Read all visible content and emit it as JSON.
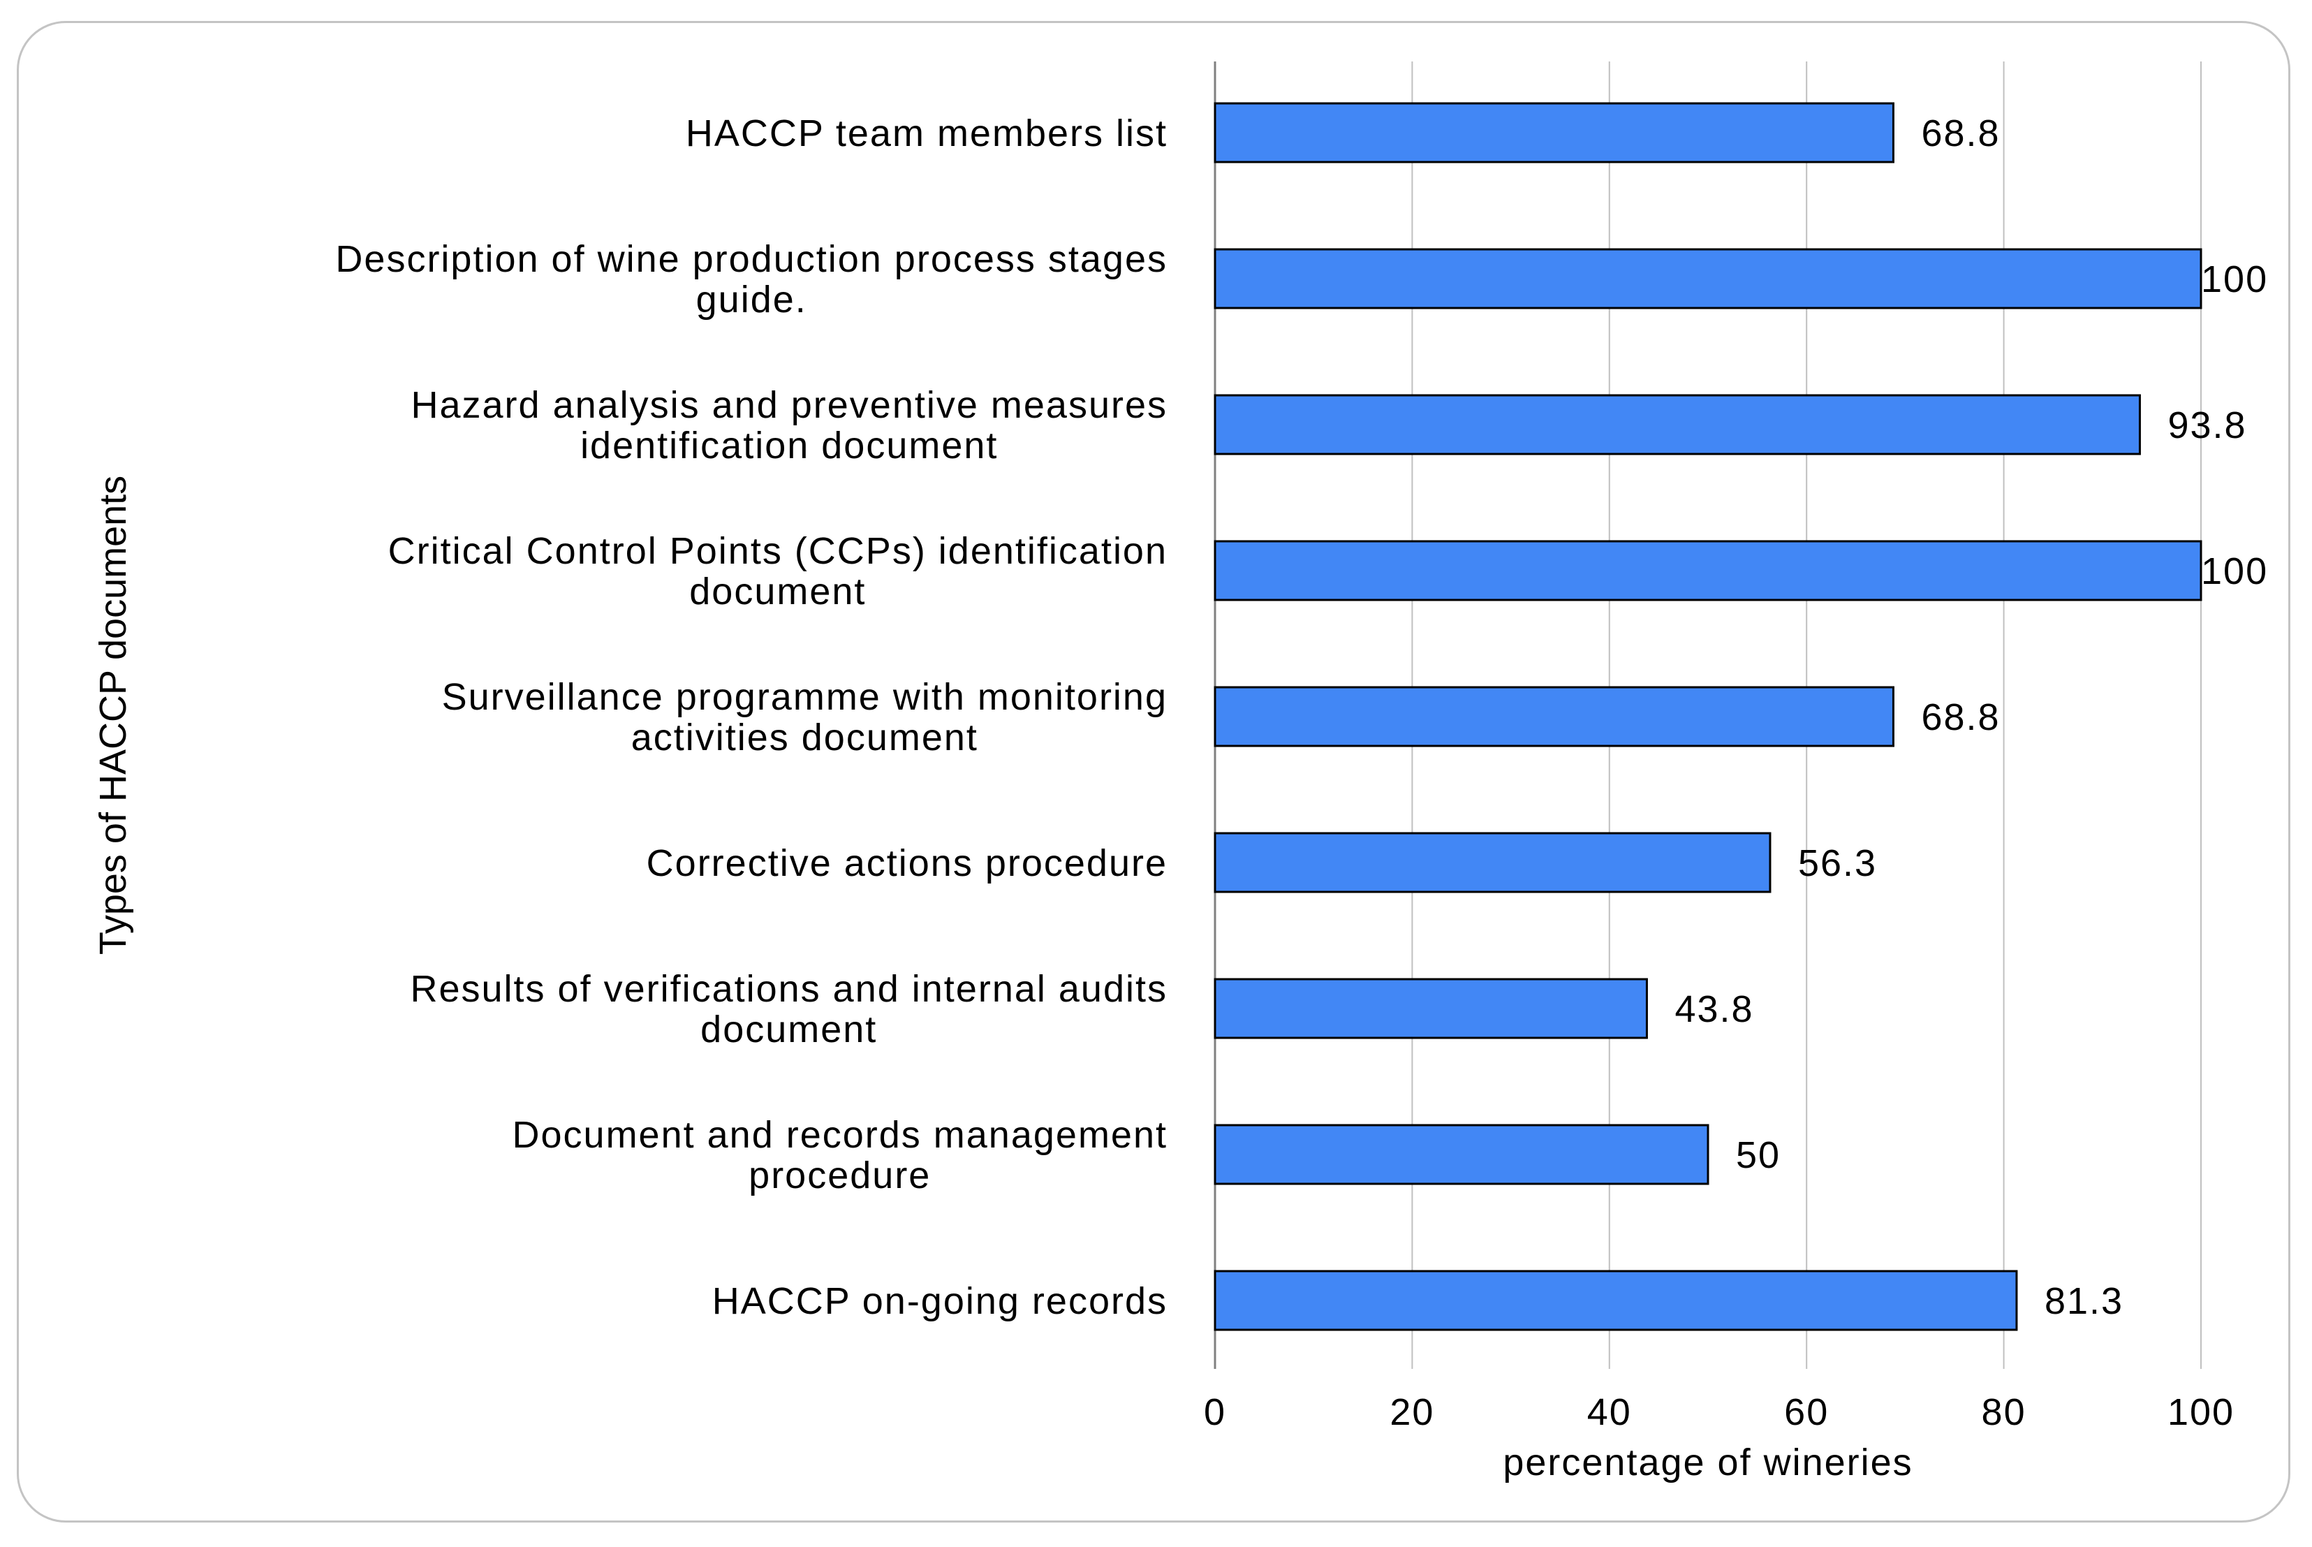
{
  "chart_data": {
    "type": "bar",
    "orientation": "horizontal",
    "categories": [
      [
        "HACCP team members list"
      ],
      [
        "Description of wine production process stages",
        "guide."
      ],
      [
        "Hazard analysis and preventive measures",
        "identification document"
      ],
      [
        "Critical Control Points (CCPs) identification",
        "document"
      ],
      [
        "Surveillance programme with monitoring",
        "activities document"
      ],
      [
        "Corrective actions procedure"
      ],
      [
        "Results of verifications and internal audits",
        "document"
      ],
      [
        "Document and records management",
        "procedure"
      ],
      [
        "HACCP on-going records"
      ]
    ],
    "values": [
      68.8,
      100,
      93.8,
      100,
      68.8,
      56.3,
      43.8,
      50,
      81.3
    ],
    "value_labels": [
      "68.8",
      "100",
      "93.8",
      "100",
      "68.8",
      "56.3",
      "43.8",
      "50",
      "81.3"
    ],
    "xlabel": "percentage of wineries",
    "ylabel": "Types of HACCP documents",
    "xlim": [
      0,
      100
    ],
    "xticks": [
      0,
      20,
      40,
      60,
      80,
      100
    ],
    "grid": "vertical",
    "legend": "none",
    "colors": {
      "bar": "#4287f5",
      "bar_edge": "#000000",
      "grid": "#c0c0c0"
    }
  }
}
